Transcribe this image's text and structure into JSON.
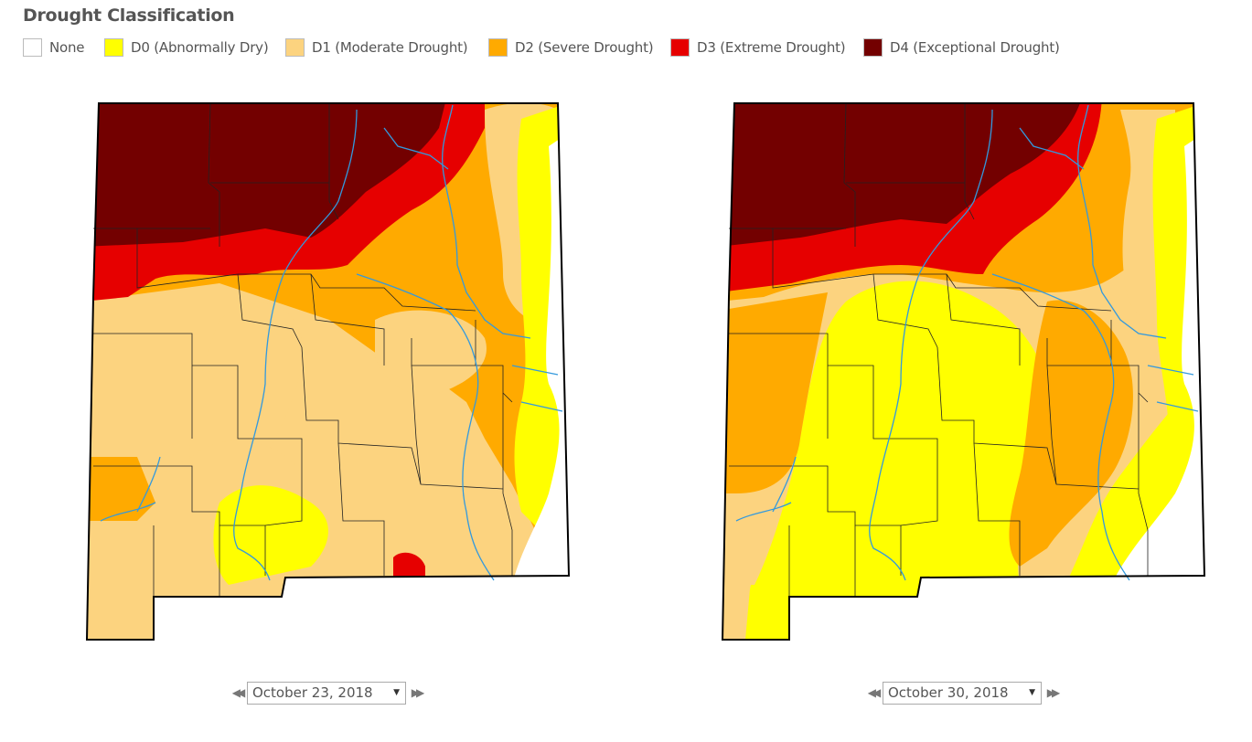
{
  "title": "Drought Classification",
  "legend": [
    {
      "label": "None",
      "color": "#ffffff"
    },
    {
      "label": "D0 (Abnormally Dry)",
      "color": "#ffff00"
    },
    {
      "label": "D1 (Moderate Drought)",
      "color": "#fcd37f"
    },
    {
      "label": "D2 (Severe Drought)",
      "color": "#ffaa00"
    },
    {
      "label": "D3 (Extreme Drought)",
      "color": "#e60000"
    },
    {
      "label": "D4 (Exceptional Drought)",
      "color": "#730000"
    }
  ],
  "maps": [
    {
      "date": "October 23, 2018"
    },
    {
      "date": "October 30, 2018"
    }
  ],
  "icons": {
    "previous": "double-chevron-left-icon",
    "next": "double-chevron-right-icon",
    "dropdown": "caret-down-icon"
  }
}
